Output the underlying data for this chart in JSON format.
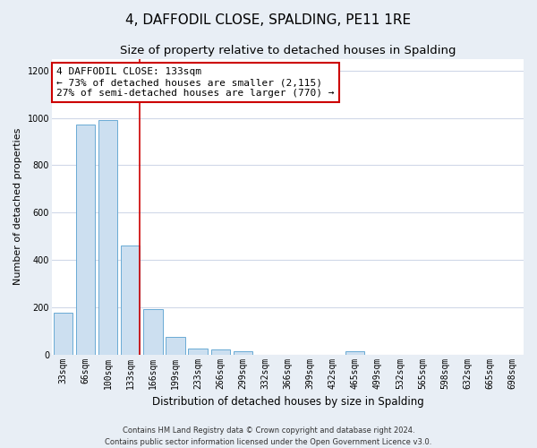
{
  "title": "4, DAFFODIL CLOSE, SPALDING, PE11 1RE",
  "subtitle": "Size of property relative to detached houses in Spalding",
  "xlabel": "Distribution of detached houses by size in Spalding",
  "ylabel": "Number of detached properties",
  "categories": [
    "33sqm",
    "66sqm",
    "100sqm",
    "133sqm",
    "166sqm",
    "199sqm",
    "233sqm",
    "266sqm",
    "299sqm",
    "332sqm",
    "366sqm",
    "399sqm",
    "432sqm",
    "465sqm",
    "499sqm",
    "532sqm",
    "565sqm",
    "598sqm",
    "632sqm",
    "665sqm",
    "698sqm"
  ],
  "values": [
    175,
    970,
    990,
    460,
    190,
    75,
    25,
    20,
    13,
    0,
    0,
    0,
    0,
    15,
    0,
    0,
    0,
    0,
    0,
    0,
    0
  ],
  "bar_color": "#ccdff0",
  "bar_edge_color": "#6aaad4",
  "highlight_line_color": "#cc0000",
  "highlight_index": 3,
  "annotation_text": "4 DAFFODIL CLOSE: 133sqm\n← 73% of detached houses are smaller (2,115)\n27% of semi-detached houses are larger (770) →",
  "annotation_box_facecolor": "#ffffff",
  "annotation_box_edgecolor": "#cc0000",
  "ylim": [
    0,
    1250
  ],
  "yticks": [
    0,
    200,
    400,
    600,
    800,
    1000,
    1200
  ],
  "footer_line1": "Contains HM Land Registry data © Crown copyright and database right 2024.",
  "footer_line2": "Contains public sector information licensed under the Open Government Licence v3.0.",
  "figure_facecolor": "#e8eef5",
  "axes_facecolor": "#ffffff",
  "grid_color": "#d0d8e8",
  "title_fontsize": 11,
  "subtitle_fontsize": 9.5,
  "xlabel_fontsize": 8.5,
  "ylabel_fontsize": 8,
  "tick_fontsize": 7,
  "annotation_fontsize": 8,
  "footer_fontsize": 6
}
